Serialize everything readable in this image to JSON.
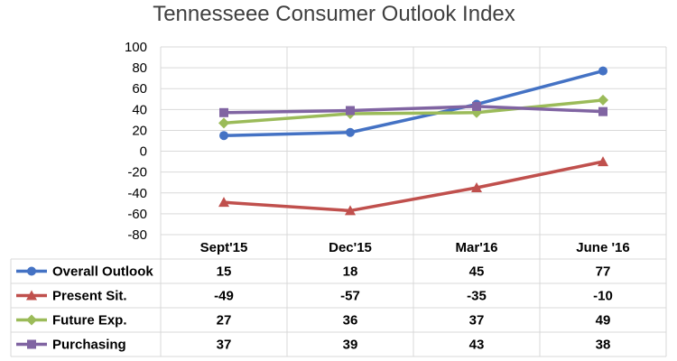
{
  "chart_data": {
    "type": "line",
    "title": "Tennesseee Consumer Outlook Index",
    "categories": [
      "Sept'15",
      "Dec'15",
      "Mar'16",
      "June '16"
    ],
    "ylim": [
      -80,
      100
    ],
    "yticks": [
      100,
      80,
      60,
      40,
      20,
      0,
      -20,
      -40,
      -60,
      -80
    ],
    "grid": true,
    "legend_placement": "data-table-left",
    "series": [
      {
        "name": "Overall Outlook",
        "values": [
          15,
          18,
          45,
          77
        ],
        "color": "#4472c4",
        "marker": "circle"
      },
      {
        "name": "Present Sit.",
        "values": [
          -49,
          -57,
          -35,
          -10
        ],
        "color": "#c0504d",
        "marker": "triangle"
      },
      {
        "name": "Future Exp.",
        "values": [
          27,
          36,
          37,
          49
        ],
        "color": "#9bbb59",
        "marker": "diamond"
      },
      {
        "name": "Purchasing",
        "values": [
          37,
          39,
          43,
          38
        ],
        "color": "#8064a2",
        "marker": "square"
      }
    ]
  }
}
